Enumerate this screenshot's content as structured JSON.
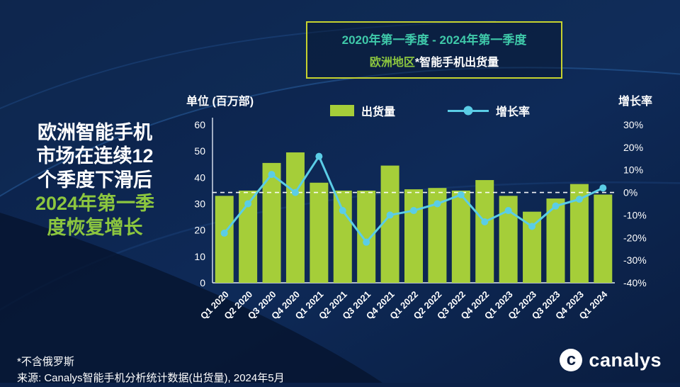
{
  "colors": {
    "background": "#0c2248",
    "bar": "#a5ce39",
    "line": "#5bcde6",
    "green": "#8cc63f",
    "teal": "#3fc8a9",
    "box_border": "#c6d22e"
  },
  "headline": {
    "white_lines": [
      "欧洲智能手机",
      "市场在连续12",
      "个季度下滑后"
    ],
    "green_lines": [
      "2024年第一季",
      "度恢复增长"
    ]
  },
  "title_box": {
    "line1": "2020年第一季度 - 2024年第一季度",
    "line2_highlight": "欧洲地区",
    "line2_rest": "*智能手机出货量"
  },
  "footnotes": [
    "*不含俄罗斯",
    "来源: Canalys智能手机分析统计数据(出货量), 2024年5月"
  ],
  "logo": {
    "mark": "c",
    "text": "canalys"
  },
  "chart_data": {
    "type": "combo",
    "title": "欧洲地区*智能手机出货量",
    "subtitle": "2020年第一季度 - 2024年第一季度",
    "categories": [
      "Q1 2020",
      "Q2 2020",
      "Q3 2020",
      "Q4 2020",
      "Q1 2021",
      "Q2 2021",
      "Q3 2021",
      "Q4 2021",
      "Q1 2022",
      "Q2 2022",
      "Q3 2022",
      "Q4 2022",
      "Q1 2023",
      "Q2 2023",
      "Q3 2023",
      "Q4 2023",
      "Q1 2024"
    ],
    "series": [
      {
        "name": "出货量",
        "type": "bar",
        "axis": "left",
        "unit": "百万部",
        "values": [
          33,
          35,
          45.5,
          49.5,
          38,
          35,
          35,
          44.5,
          35.5,
          36,
          35,
          39,
          33,
          27,
          32,
          37.5,
          33.5
        ]
      },
      {
        "name": "增长率",
        "type": "line",
        "axis": "right",
        "unit": "%",
        "values": [
          -18,
          -5,
          8,
          0,
          16,
          -8,
          -22,
          -10,
          -8,
          -5,
          -1,
          -13,
          -8,
          -15,
          -6,
          -3,
          2
        ]
      }
    ],
    "left_axis": {
      "title": "单位 (百万部)",
      "min": 0,
      "max": 60,
      "step": 10
    },
    "right_axis": {
      "title": "增长率",
      "min": -40,
      "max": 30,
      "step": 10,
      "suffix": "%"
    },
    "zero_line": {
      "axis": "right",
      "value": 0,
      "style": "dashed"
    },
    "legend_position": "top",
    "grid": false
  }
}
